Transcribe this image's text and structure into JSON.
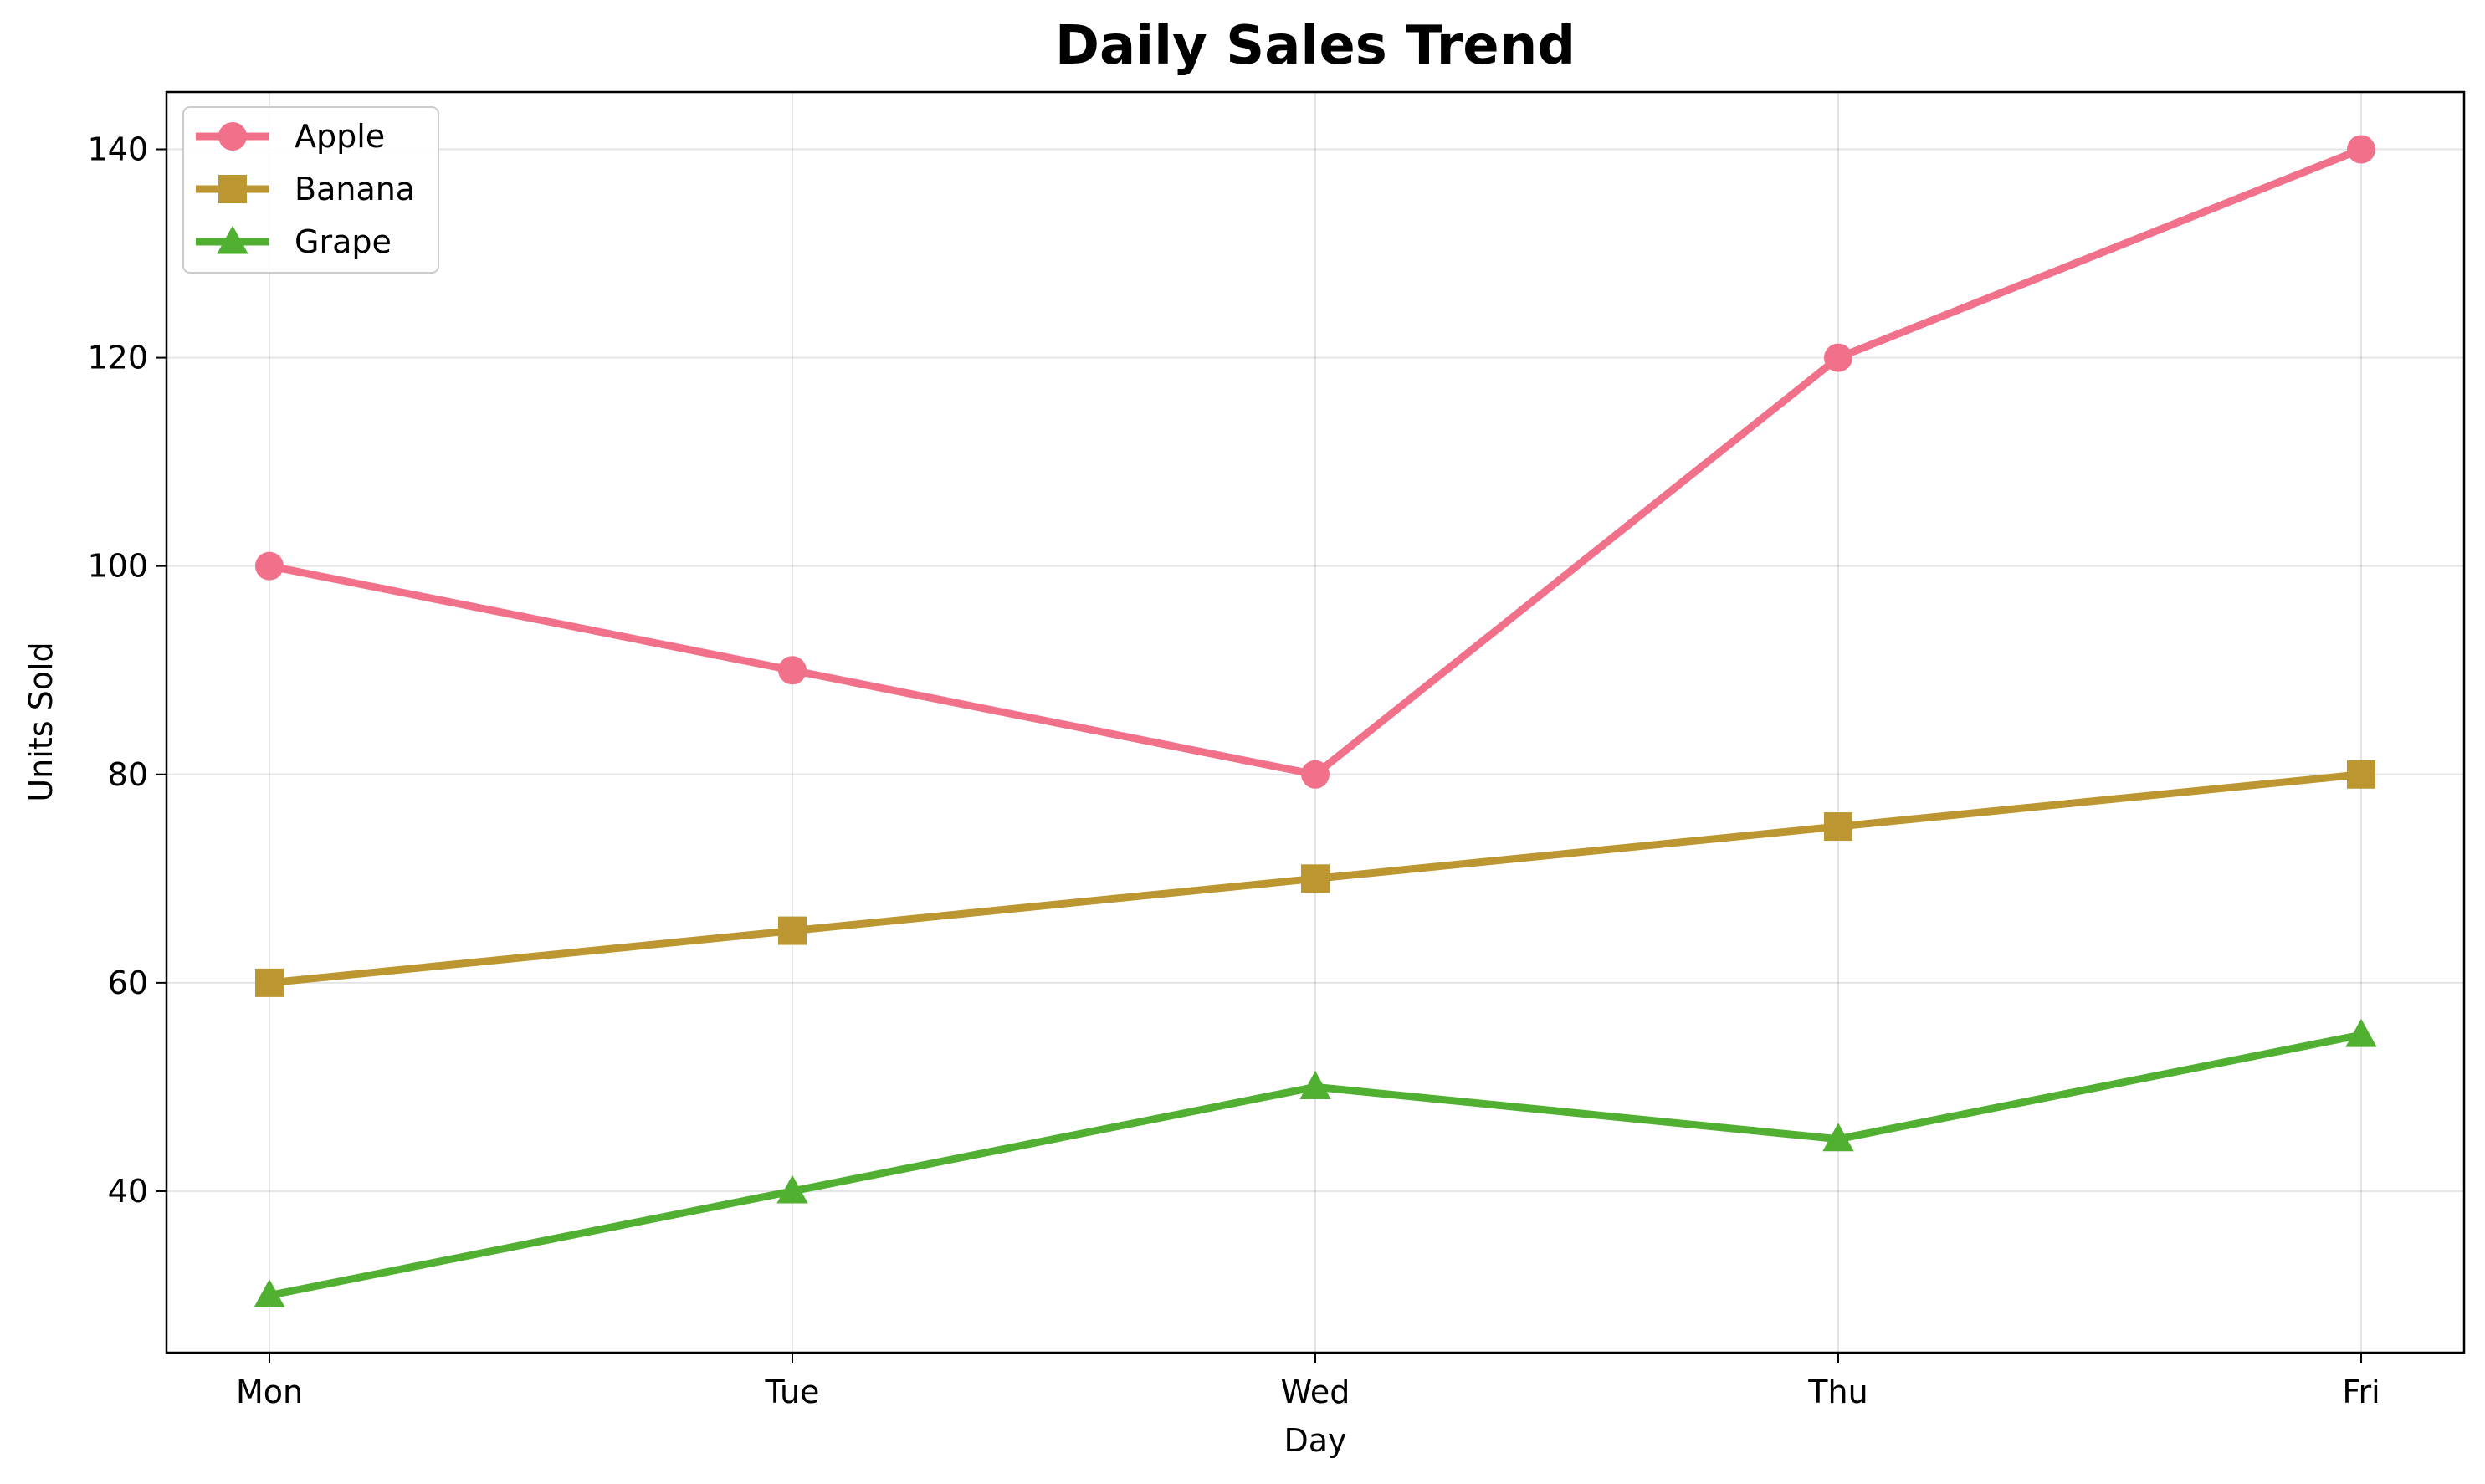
{
  "chart_data": {
    "type": "line",
    "title": "Daily Sales Trend",
    "xlabel": "Day",
    "ylabel": "Units Sold",
    "categories": [
      "Mon",
      "Tue",
      "Wed",
      "Thu",
      "Fri"
    ],
    "ylim": [
      24.5,
      145.5
    ],
    "yticks": [
      40,
      60,
      80,
      100,
      120,
      140
    ],
    "grid": true,
    "legend_position": "top-left",
    "series": [
      {
        "name": "Apple",
        "values": [
          100,
          90,
          80,
          120,
          140
        ],
        "color": "#f1718b",
        "marker": "circle"
      },
      {
        "name": "Banana",
        "values": [
          60,
          65,
          70,
          75,
          80
        ],
        "color": "#bb9631",
        "marker": "square"
      },
      {
        "name": "Grape",
        "values": [
          30,
          40,
          50,
          45,
          55
        ],
        "color": "#51b032",
        "marker": "triangle"
      }
    ]
  }
}
